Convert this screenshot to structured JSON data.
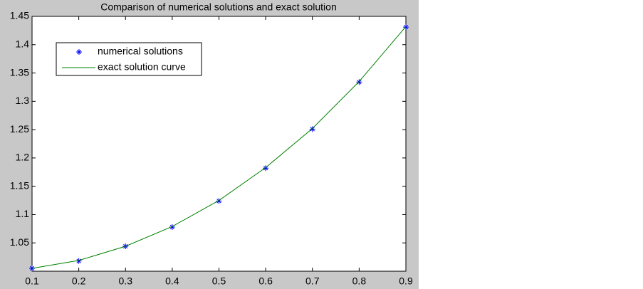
{
  "chart_data": {
    "type": "line",
    "title": "Comparison of numerical solutions and exact solution",
    "x": [
      0.1,
      0.2,
      0.3,
      0.4,
      0.5,
      0.6,
      0.7,
      0.8,
      0.9
    ],
    "series": [
      {
        "name": "numerical solutions",
        "color": "#0000ff",
        "marker": "*",
        "values": [
          1.005,
          1.018,
          1.044,
          1.078,
          1.124,
          1.182,
          1.251,
          1.334,
          1.431
        ]
      },
      {
        "name": "exact solution curve",
        "color": "#008000",
        "linestyle": "-",
        "values": [
          1.005,
          1.019,
          1.044,
          1.079,
          1.125,
          1.183,
          1.252,
          1.335,
          1.432
        ]
      }
    ],
    "xlim": [
      0.1,
      0.9
    ],
    "xticks": [
      0.1,
      0.2,
      0.3,
      0.4,
      0.5,
      0.6,
      0.7,
      0.8,
      0.9
    ],
    "ylim": [
      1.0,
      1.45
    ],
    "yticks": [
      1.05,
      1.1,
      1.15,
      1.2,
      1.25,
      1.3,
      1.35,
      1.4,
      1.45
    ],
    "grid": false,
    "legend": "upper left"
  }
}
